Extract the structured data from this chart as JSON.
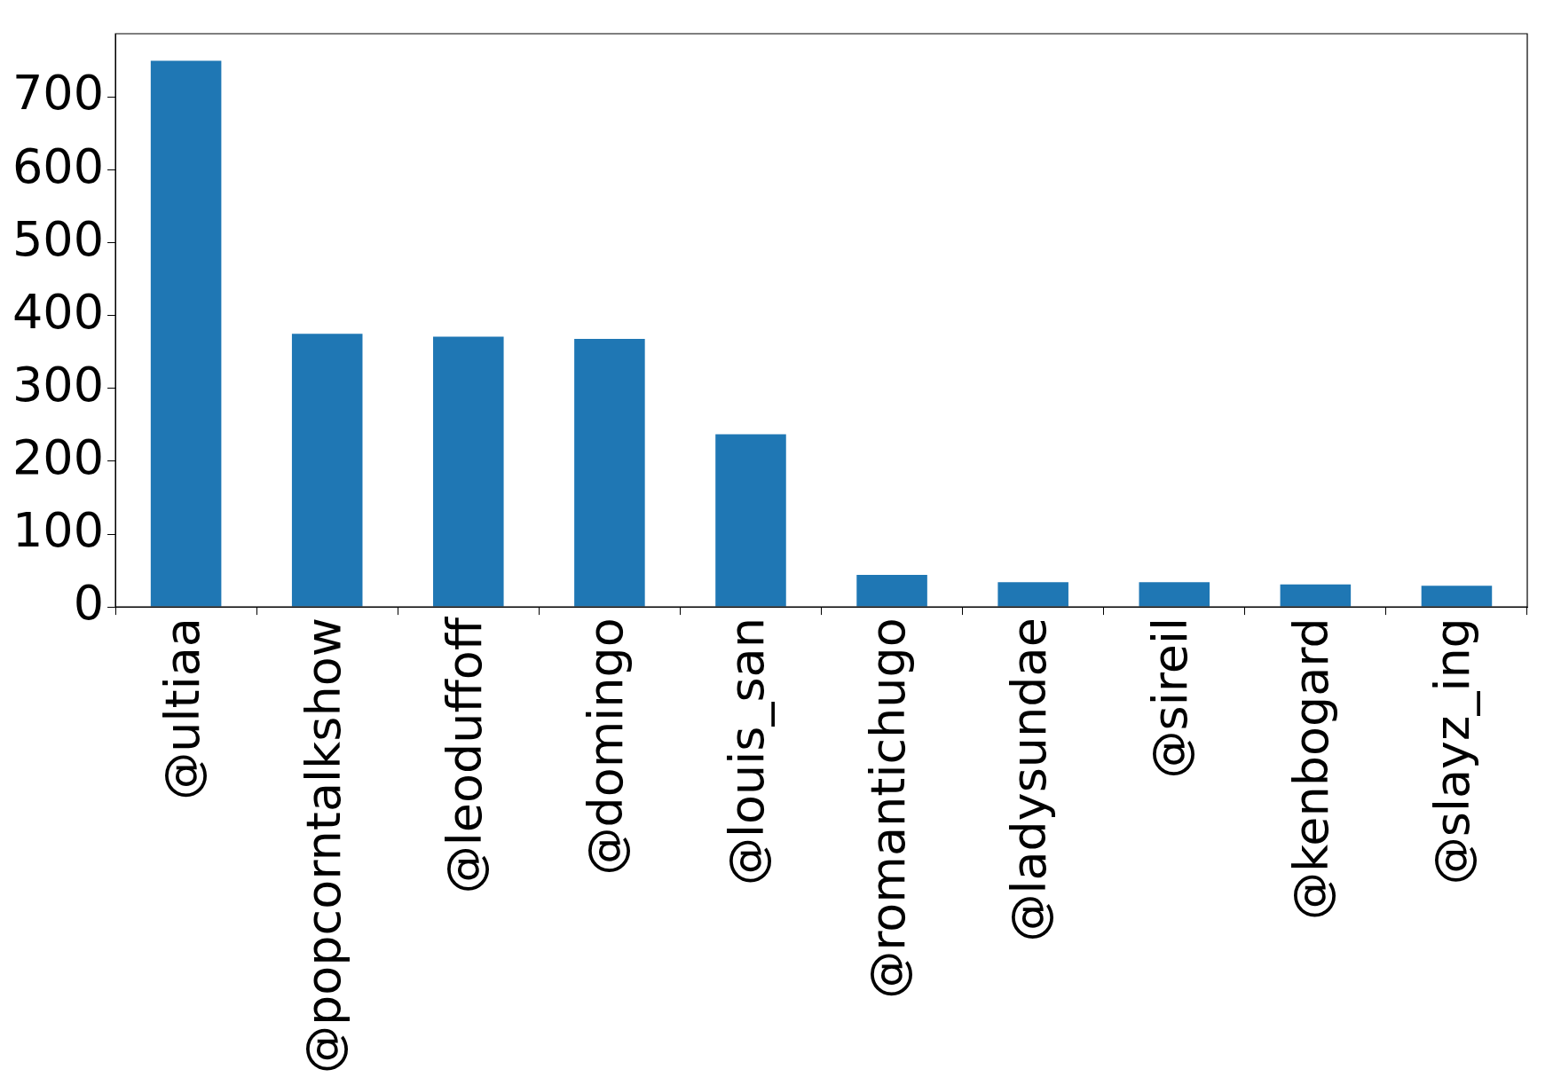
{
  "chart_data": {
    "type": "bar",
    "categories": [
      "@ultiaa",
      "@popcorntalkshow",
      "@leoduffoff",
      "@domingo",
      "@louis_san",
      "@romantichugo",
      "@ladysundae",
      "@sireil",
      "@kenbogard",
      "@slayz_ing"
    ],
    "values": [
      750,
      375,
      371,
      368,
      237,
      44,
      34,
      34,
      31,
      29
    ],
    "color": "#1f77b4",
    "ylim": [
      0,
      787
    ],
    "yticks": [
      0,
      100,
      200,
      300,
      400,
      500,
      600,
      700
    ],
    "grid": false,
    "legend": false
  }
}
